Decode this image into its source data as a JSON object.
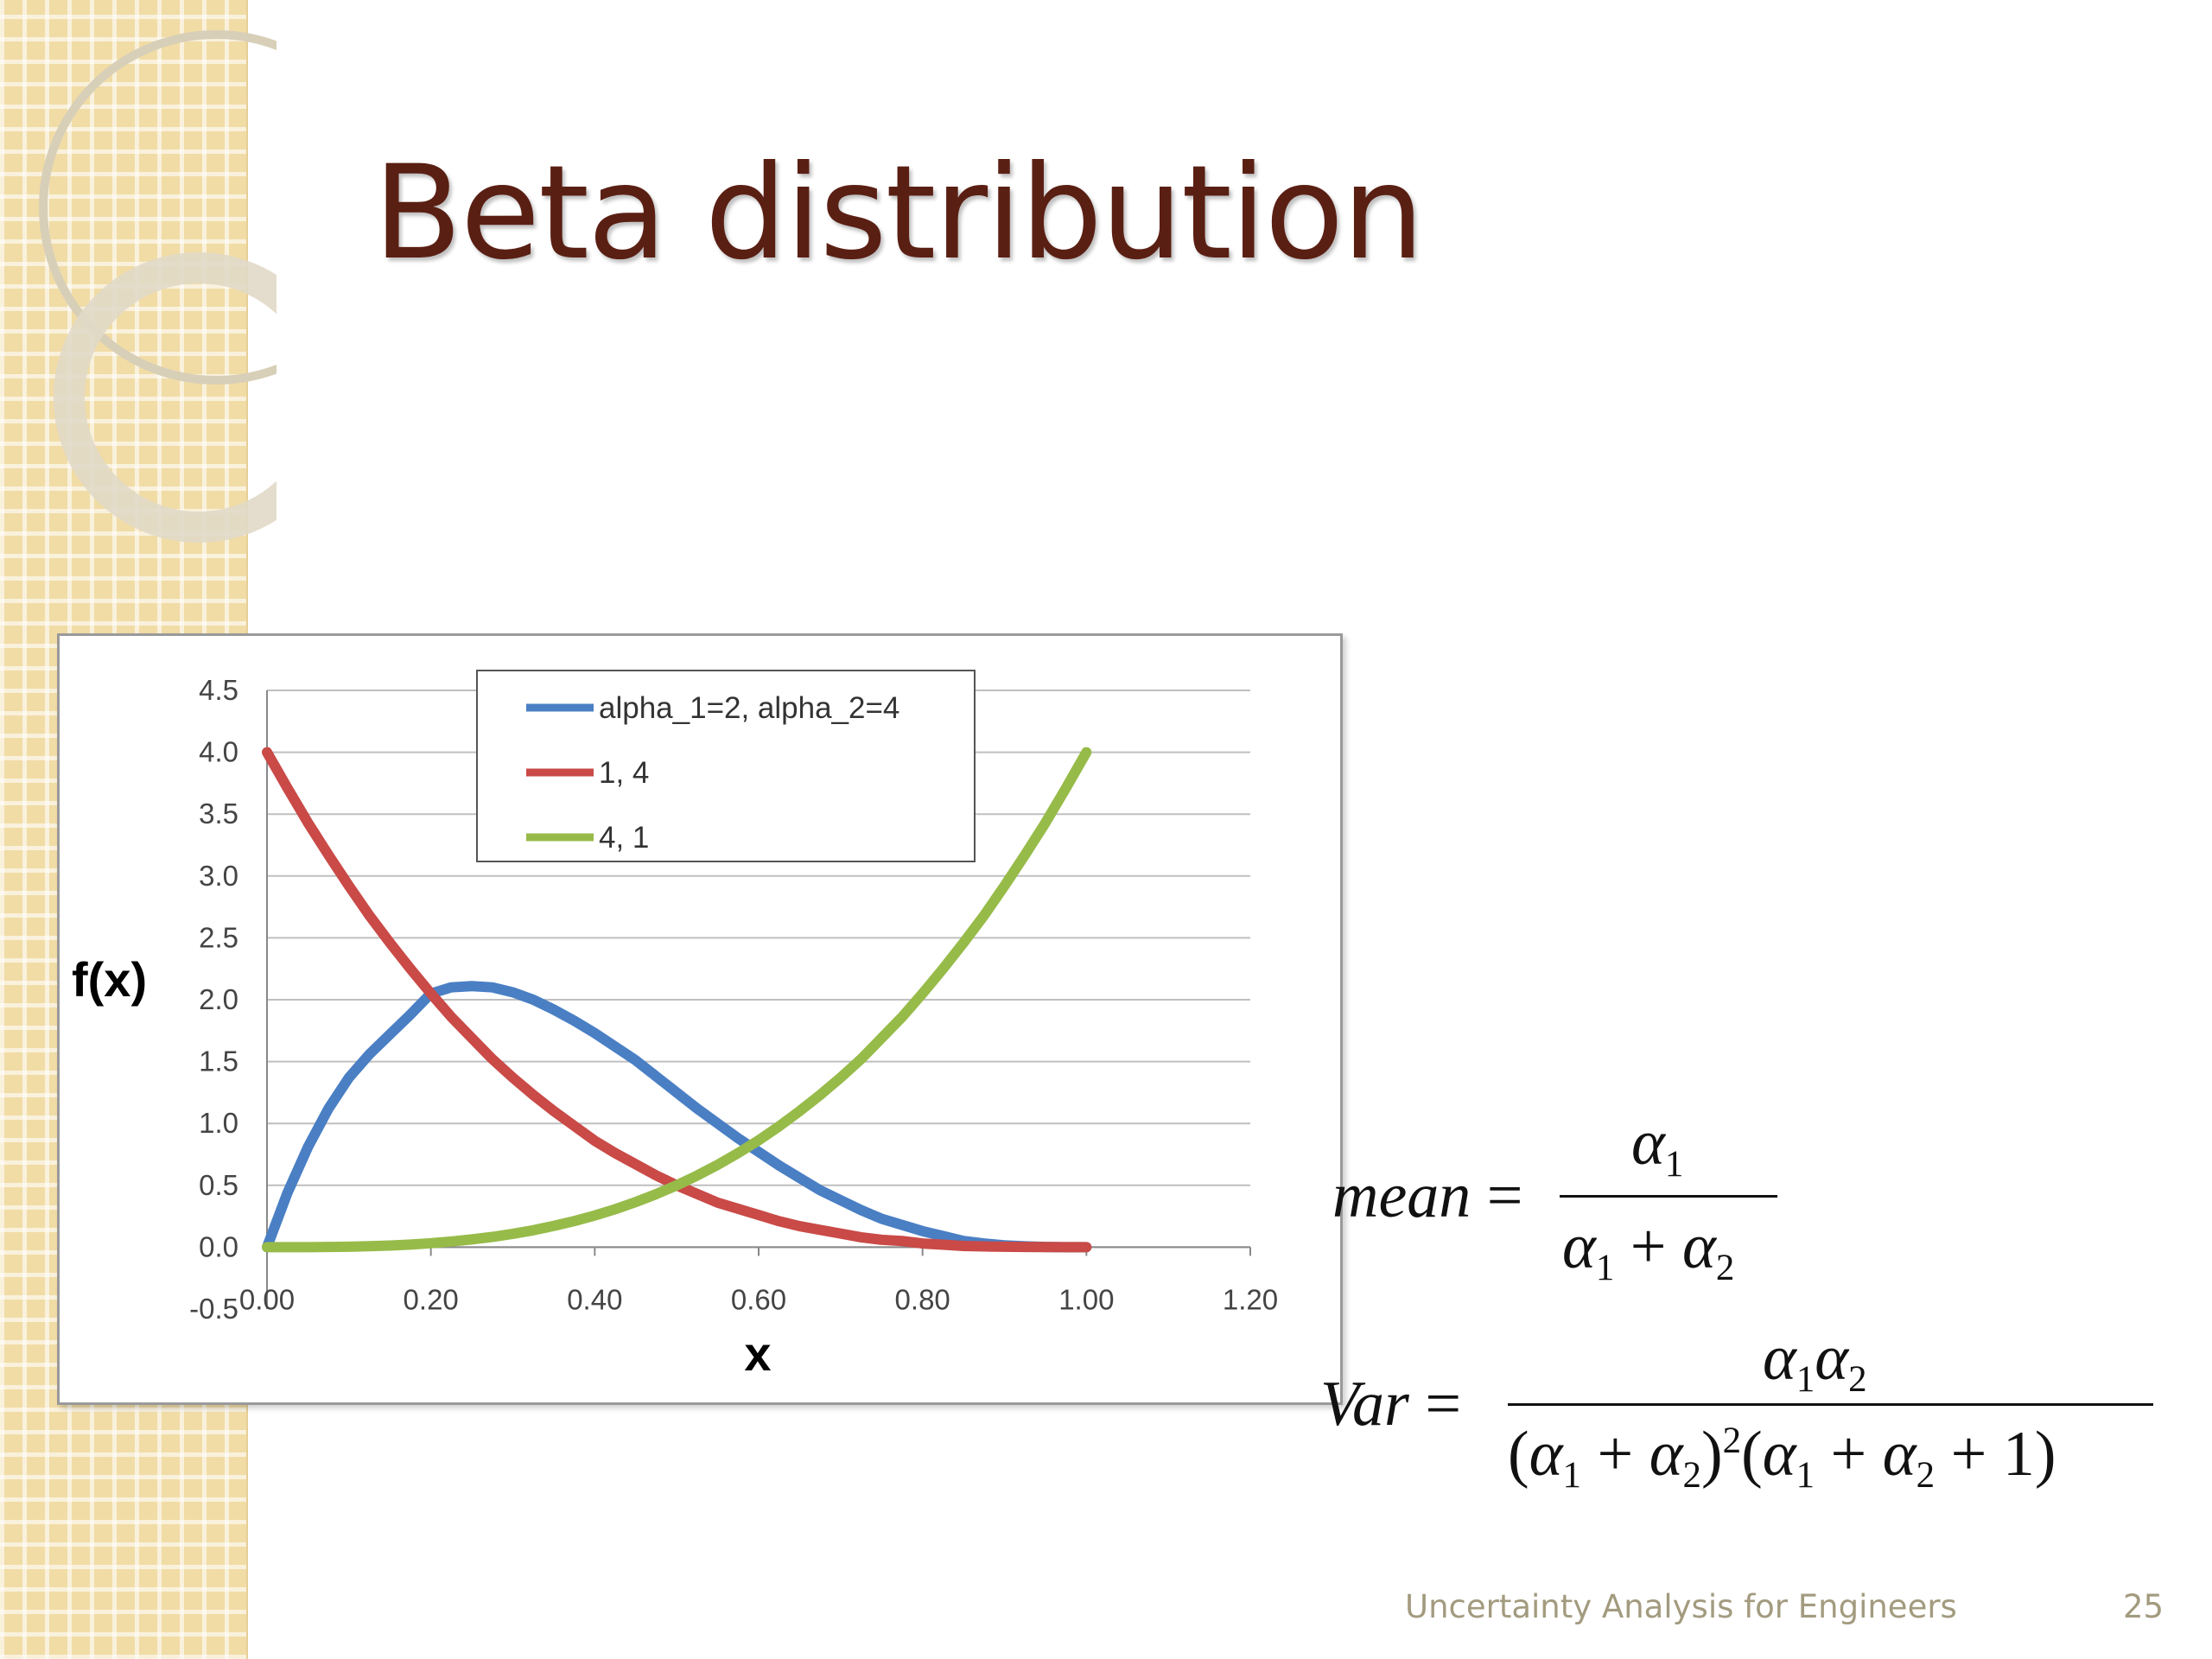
{
  "slide": {
    "title": "Beta distribution",
    "footer": "Uncertainty Analysis for Engineers",
    "page_number": "25"
  },
  "formulas": {
    "mean": {
      "lhs": "mean",
      "eq": "=",
      "alpha": "α",
      "one": "1",
      "two": "2",
      "plus": "+"
    },
    "var": {
      "lhs": "Var",
      "eq": "=",
      "alpha": "α",
      "one": "1",
      "two": "2",
      "plus": "+",
      "sq": "2",
      "lparen": "(",
      "rparen": ")",
      "const": "1"
    }
  },
  "colors": {
    "title": "#5a1f13",
    "series_blue": "#4a7fc4",
    "series_red": "#c94a47",
    "series_green": "#97bb49",
    "grid": "#bfbfbf",
    "footer": "#a39b7f"
  },
  "chart_data": {
    "type": "line",
    "xlabel": "x",
    "ylabel": "f(x)",
    "xlim": [
      0,
      1.2
    ],
    "ylim": [
      -0.5,
      4.5
    ],
    "x_ticks": [
      "0.00",
      "0.20",
      "0.40",
      "0.60",
      "0.80",
      "1.00",
      "1.20"
    ],
    "y_ticks": [
      "-0.5",
      "0.0",
      "0.5",
      "1.0",
      "1.5",
      "2.0",
      "2.5",
      "3.0",
      "3.5",
      "4.0",
      "4.5"
    ],
    "grid": true,
    "legend_position": "top-center",
    "x": [
      0,
      0.025,
      0.05,
      0.075,
      0.1,
      0.125,
      0.15,
      0.175,
      0.2,
      0.225,
      0.25,
      0.275,
      0.3,
      0.325,
      0.35,
      0.375,
      0.4,
      0.425,
      0.45,
      0.475,
      0.5,
      0.525,
      0.55,
      0.575,
      0.6,
      0.625,
      0.65,
      0.675,
      0.7,
      0.725,
      0.75,
      0.775,
      0.8,
      0.825,
      0.85,
      0.875,
      0.9,
      0.925,
      0.95,
      0.975,
      1.0
    ],
    "series": [
      {
        "name": "alpha_1=2, alpha_2=4",
        "color": "#4a7fc4",
        "values": [
          0,
          0.44,
          0.81,
          1.12,
          1.37,
          1.56,
          1.72,
          1.88,
          2.05,
          2.1,
          2.11,
          2.1,
          2.06,
          2.0,
          1.92,
          1.83,
          1.73,
          1.62,
          1.51,
          1.38,
          1.25,
          1.12,
          1.0,
          0.88,
          0.77,
          0.66,
          0.56,
          0.46,
          0.38,
          0.3,
          0.23,
          0.18,
          0.13,
          0.09,
          0.05,
          0.03,
          0.015,
          0.007,
          0.002,
          0,
          0
        ]
      },
      {
        "name": "1, 4",
        "color": "#c94a47",
        "values": [
          4.0,
          3.71,
          3.43,
          3.17,
          2.92,
          2.68,
          2.46,
          2.25,
          2.05,
          1.86,
          1.69,
          1.52,
          1.37,
          1.23,
          1.1,
          0.98,
          0.86,
          0.76,
          0.67,
          0.58,
          0.5,
          0.43,
          0.36,
          0.31,
          0.26,
          0.21,
          0.17,
          0.14,
          0.11,
          0.08,
          0.06,
          0.05,
          0.03,
          0.02,
          0.01,
          0.006,
          0.004,
          0.002,
          0.001,
          0,
          0
        ]
      },
      {
        "name": "4, 1",
        "color": "#97bb49",
        "values": [
          0,
          0,
          0,
          0.002,
          0.004,
          0.008,
          0.013,
          0.021,
          0.032,
          0.046,
          0.063,
          0.083,
          0.108,
          0.137,
          0.172,
          0.211,
          0.256,
          0.307,
          0.365,
          0.429,
          0.5,
          0.579,
          0.666,
          0.761,
          0.864,
          0.977,
          1.1,
          1.23,
          1.37,
          1.52,
          1.69,
          1.86,
          2.05,
          2.25,
          2.46,
          2.68,
          2.92,
          3.17,
          3.43,
          3.71,
          4.0
        ]
      }
    ]
  }
}
